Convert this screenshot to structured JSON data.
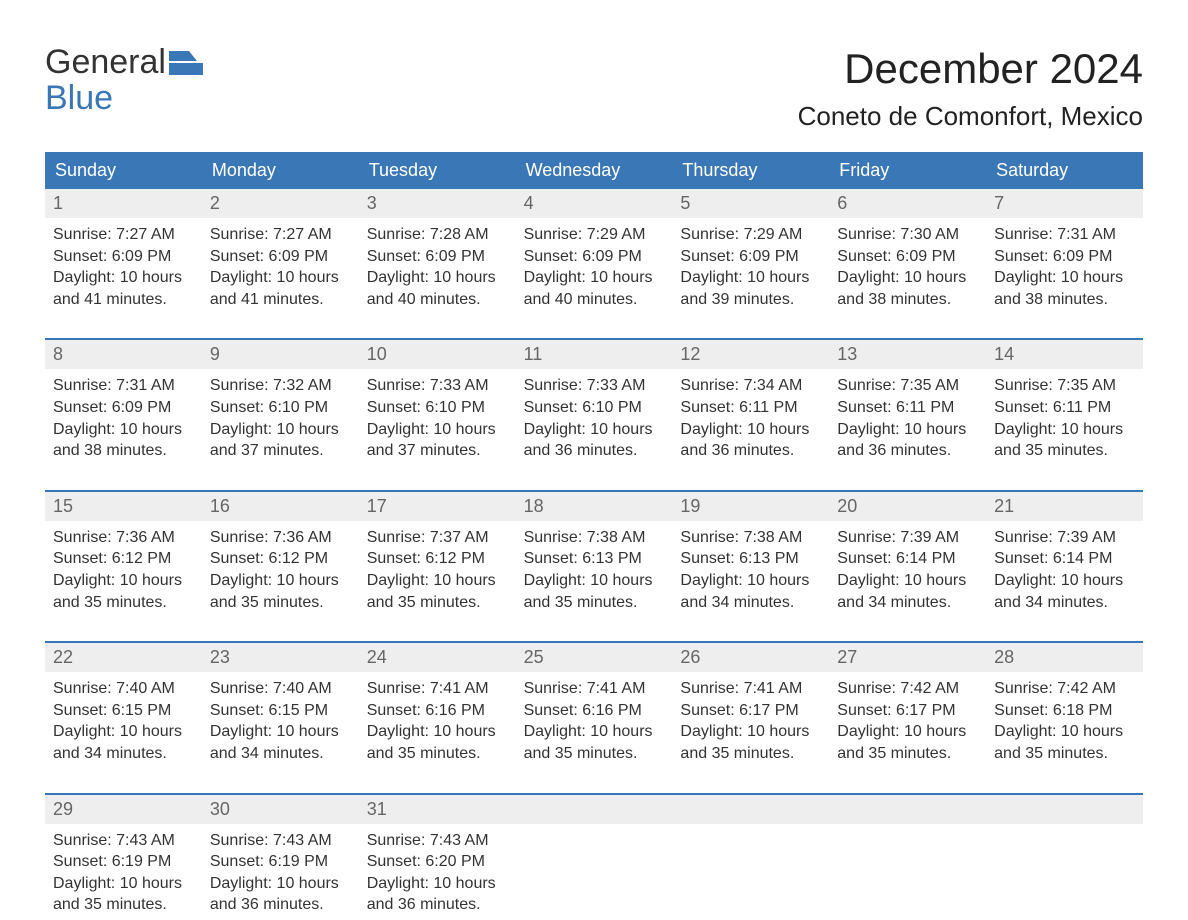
{
  "logo": {
    "line1": "General",
    "line2": "Blue"
  },
  "title": "December 2024",
  "location": "Coneto de Comonfort, Mexico",
  "colors": {
    "accent": "#3a77b6",
    "header_text": "#ffffff",
    "daynum_bg": "#eeeeee",
    "daynum_text": "#666666",
    "body_text": "#333333",
    "background": "#ffffff"
  },
  "layout": {
    "columns": 7,
    "week_count": 5,
    "title_fontsize": 42,
    "location_fontsize": 26,
    "dow_fontsize": 18,
    "cell_fontsize": 16
  },
  "dow": [
    "Sunday",
    "Monday",
    "Tuesday",
    "Wednesday",
    "Thursday",
    "Friday",
    "Saturday"
  ],
  "days": [
    {
      "n": "1",
      "sr": "7:27 AM",
      "ss": "6:09 PM",
      "dh": "10",
      "dm": "41"
    },
    {
      "n": "2",
      "sr": "7:27 AM",
      "ss": "6:09 PM",
      "dh": "10",
      "dm": "41"
    },
    {
      "n": "3",
      "sr": "7:28 AM",
      "ss": "6:09 PM",
      "dh": "10",
      "dm": "40"
    },
    {
      "n": "4",
      "sr": "7:29 AM",
      "ss": "6:09 PM",
      "dh": "10",
      "dm": "40"
    },
    {
      "n": "5",
      "sr": "7:29 AM",
      "ss": "6:09 PM",
      "dh": "10",
      "dm": "39"
    },
    {
      "n": "6",
      "sr": "7:30 AM",
      "ss": "6:09 PM",
      "dh": "10",
      "dm": "38"
    },
    {
      "n": "7",
      "sr": "7:31 AM",
      "ss": "6:09 PM",
      "dh": "10",
      "dm": "38"
    },
    {
      "n": "8",
      "sr": "7:31 AM",
      "ss": "6:09 PM",
      "dh": "10",
      "dm": "38"
    },
    {
      "n": "9",
      "sr": "7:32 AM",
      "ss": "6:10 PM",
      "dh": "10",
      "dm": "37"
    },
    {
      "n": "10",
      "sr": "7:33 AM",
      "ss": "6:10 PM",
      "dh": "10",
      "dm": "37"
    },
    {
      "n": "11",
      "sr": "7:33 AM",
      "ss": "6:10 PM",
      "dh": "10",
      "dm": "36"
    },
    {
      "n": "12",
      "sr": "7:34 AM",
      "ss": "6:11 PM",
      "dh": "10",
      "dm": "36"
    },
    {
      "n": "13",
      "sr": "7:35 AM",
      "ss": "6:11 PM",
      "dh": "10",
      "dm": "36"
    },
    {
      "n": "14",
      "sr": "7:35 AM",
      "ss": "6:11 PM",
      "dh": "10",
      "dm": "35"
    },
    {
      "n": "15",
      "sr": "7:36 AM",
      "ss": "6:12 PM",
      "dh": "10",
      "dm": "35"
    },
    {
      "n": "16",
      "sr": "7:36 AM",
      "ss": "6:12 PM",
      "dh": "10",
      "dm": "35"
    },
    {
      "n": "17",
      "sr": "7:37 AM",
      "ss": "6:12 PM",
      "dh": "10",
      "dm": "35"
    },
    {
      "n": "18",
      "sr": "7:38 AM",
      "ss": "6:13 PM",
      "dh": "10",
      "dm": "35"
    },
    {
      "n": "19",
      "sr": "7:38 AM",
      "ss": "6:13 PM",
      "dh": "10",
      "dm": "34"
    },
    {
      "n": "20",
      "sr": "7:39 AM",
      "ss": "6:14 PM",
      "dh": "10",
      "dm": "34"
    },
    {
      "n": "21",
      "sr": "7:39 AM",
      "ss": "6:14 PM",
      "dh": "10",
      "dm": "34"
    },
    {
      "n": "22",
      "sr": "7:40 AM",
      "ss": "6:15 PM",
      "dh": "10",
      "dm": "34"
    },
    {
      "n": "23",
      "sr": "7:40 AM",
      "ss": "6:15 PM",
      "dh": "10",
      "dm": "34"
    },
    {
      "n": "24",
      "sr": "7:41 AM",
      "ss": "6:16 PM",
      "dh": "10",
      "dm": "35"
    },
    {
      "n": "25",
      "sr": "7:41 AM",
      "ss": "6:16 PM",
      "dh": "10",
      "dm": "35"
    },
    {
      "n": "26",
      "sr": "7:41 AM",
      "ss": "6:17 PM",
      "dh": "10",
      "dm": "35"
    },
    {
      "n": "27",
      "sr": "7:42 AM",
      "ss": "6:17 PM",
      "dh": "10",
      "dm": "35"
    },
    {
      "n": "28",
      "sr": "7:42 AM",
      "ss": "6:18 PM",
      "dh": "10",
      "dm": "35"
    },
    {
      "n": "29",
      "sr": "7:43 AM",
      "ss": "6:19 PM",
      "dh": "10",
      "dm": "35"
    },
    {
      "n": "30",
      "sr": "7:43 AM",
      "ss": "6:19 PM",
      "dh": "10",
      "dm": "36"
    },
    {
      "n": "31",
      "sr": "7:43 AM",
      "ss": "6:20 PM",
      "dh": "10",
      "dm": "36"
    }
  ],
  "labels": {
    "sunrise": "Sunrise: ",
    "sunset": "Sunset: ",
    "daylight_prefix": "Daylight: ",
    "hours_word": " hours",
    "and_word": "and ",
    "minutes_word": " minutes."
  }
}
